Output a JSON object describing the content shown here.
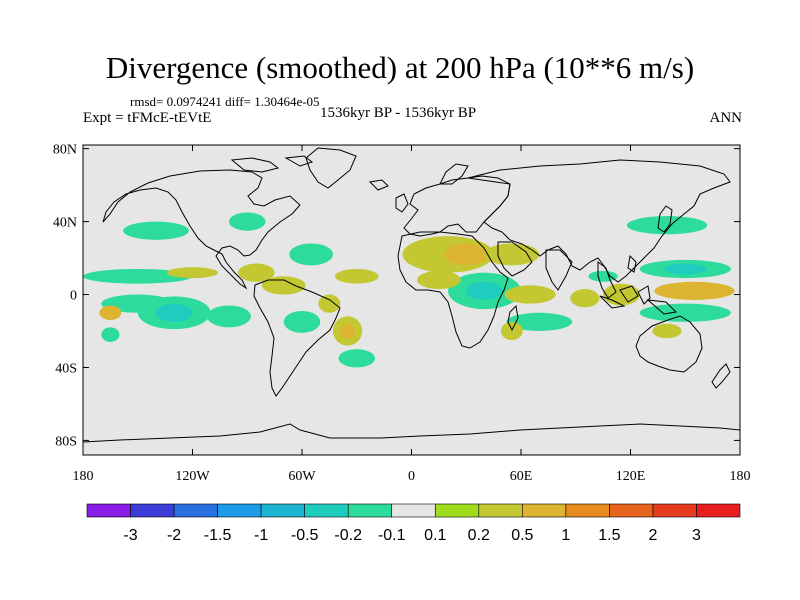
{
  "header": {
    "title": "Divergence (smoothed) at 200 hPa (10**6 m/s)",
    "stats": "rmsd= 0.0974241 diff= 1.30464e-05",
    "experiment": "Expt = tFMcE-tEVtE",
    "period": "1536kyr BP - 1536kyr BP",
    "season": "ANN"
  },
  "axes": {
    "lat_ticks": [
      {
        "value": 80,
        "label": "80N"
      },
      {
        "value": 40,
        "label": "40N"
      },
      {
        "value": 0,
        "label": "0"
      },
      {
        "value": -40,
        "label": "40S"
      },
      {
        "value": -80,
        "label": "80S"
      }
    ],
    "lon_ticks": [
      {
        "value": -180,
        "label": "180"
      },
      {
        "value": -120,
        "label": "120W"
      },
      {
        "value": -60,
        "label": "60W"
      },
      {
        "value": 0,
        "label": "0"
      },
      {
        "value": 60,
        "label": "60E"
      },
      {
        "value": 120,
        "label": "120E"
      },
      {
        "value": 180,
        "label": "180"
      }
    ]
  },
  "colorbar": {
    "labels": [
      "-3",
      "-2",
      "-1.5",
      "-1",
      "-0.5",
      "-0.2",
      "-0.1",
      "0.1",
      "0.2",
      "0.5",
      "1",
      "1.5",
      "2",
      "3"
    ],
    "colors": [
      "#8a1ee6",
      "#3c3cd6",
      "#2a6fe0",
      "#1e9be6",
      "#1eb4d2",
      "#1ecdbe",
      "#2ddc9a",
      "#e6e6e6",
      "#a0dc1e",
      "#c3c832",
      "#dcb432",
      "#e68c1e",
      "#e6641e",
      "#e63c1e",
      "#e61e1e"
    ]
  },
  "map": {
    "background": "#e6e6e6",
    "regions": [
      {
        "lon": -140,
        "lat": 35,
        "rx": 18,
        "ry": 5,
        "level": -0.2
      },
      {
        "lon": -90,
        "lat": 40,
        "rx": 10,
        "ry": 5,
        "level": -0.2
      },
      {
        "lon": -55,
        "lat": 22,
        "rx": 12,
        "ry": 6,
        "level": -0.2
      },
      {
        "lon": -150,
        "lat": 10,
        "rx": 30,
        "ry": 4,
        "level": -0.2
      },
      {
        "lon": -85,
        "lat": 12,
        "rx": 10,
        "ry": 5,
        "level": 0.2
      },
      {
        "lon": -120,
        "lat": 12,
        "rx": 14,
        "ry": 3,
        "level": 0.2
      },
      {
        "lon": -150,
        "lat": -5,
        "rx": 20,
        "ry": 5,
        "level": -0.2
      },
      {
        "lon": -130,
        "lat": -10,
        "rx": 20,
        "ry": 9,
        "level": -0.2
      },
      {
        "lon": -130,
        "lat": -10,
        "rx": 10,
        "ry": 5,
        "level": -0.5
      },
      {
        "lon": -100,
        "lat": -12,
        "rx": 12,
        "ry": 6,
        "level": -0.2
      },
      {
        "lon": -165,
        "lat": -10,
        "rx": 6,
        "ry": 4,
        "level": 0.5
      },
      {
        "lon": -165,
        "lat": -22,
        "rx": 5,
        "ry": 4,
        "level": -0.2
      },
      {
        "lon": -70,
        "lat": 5,
        "rx": 12,
        "ry": 5,
        "level": 0.2
      },
      {
        "lon": -45,
        "lat": -5,
        "rx": 6,
        "ry": 5,
        "level": 0.2
      },
      {
        "lon": -60,
        "lat": -15,
        "rx": 10,
        "ry": 6,
        "level": -0.2
      },
      {
        "lon": -35,
        "lat": -20,
        "rx": 8,
        "ry": 8,
        "level": 0.2
      },
      {
        "lon": -35,
        "lat": -20,
        "rx": 4,
        "ry": 4,
        "level": 0.5
      },
      {
        "lon": -30,
        "lat": -35,
        "rx": 10,
        "ry": 5,
        "level": -0.2
      },
      {
        "lon": -30,
        "lat": 10,
        "rx": 12,
        "ry": 4,
        "level": 0.2
      },
      {
        "lon": 20,
        "lat": 22,
        "rx": 25,
        "ry": 10,
        "level": 0.2
      },
      {
        "lon": 30,
        "lat": 22,
        "rx": 12,
        "ry": 6,
        "level": 0.5
      },
      {
        "lon": 55,
        "lat": 22,
        "rx": 15,
        "ry": 6,
        "level": 0.2
      },
      {
        "lon": 40,
        "lat": 2,
        "rx": 20,
        "ry": 10,
        "level": -0.2
      },
      {
        "lon": 40,
        "lat": 2,
        "rx": 10,
        "ry": 5,
        "level": -0.5
      },
      {
        "lon": 15,
        "lat": 8,
        "rx": 12,
        "ry": 5,
        "level": 0.2
      },
      {
        "lon": 65,
        "lat": 0,
        "rx": 14,
        "ry": 5,
        "level": 0.2
      },
      {
        "lon": 70,
        "lat": -15,
        "rx": 18,
        "ry": 5,
        "level": -0.2
      },
      {
        "lon": 55,
        "lat": -20,
        "rx": 6,
        "ry": 5,
        "level": 0.2
      },
      {
        "lon": 95,
        "lat": -2,
        "rx": 8,
        "ry": 5,
        "level": 0.2
      },
      {
        "lon": 115,
        "lat": 0,
        "rx": 10,
        "ry": 6,
        "level": 0.2
      },
      {
        "lon": 105,
        "lat": 10,
        "rx": 8,
        "ry": 3,
        "level": -0.2
      },
      {
        "lon": 140,
        "lat": 38,
        "rx": 22,
        "ry": 5,
        "level": -0.2
      },
      {
        "lon": 150,
        "lat": 14,
        "rx": 25,
        "ry": 5,
        "level": -0.2
      },
      {
        "lon": 150,
        "lat": 14,
        "rx": 12,
        "ry": 3,
        "level": -0.5
      },
      {
        "lon": 155,
        "lat": 2,
        "rx": 22,
        "ry": 5,
        "level": 0.5
      },
      {
        "lon": 150,
        "lat": -10,
        "rx": 25,
        "ry": 5,
        "level": -0.2
      },
      {
        "lon": 140,
        "lat": -20,
        "rx": 8,
        "ry": 4,
        "level": 0.2
      }
    ]
  }
}
